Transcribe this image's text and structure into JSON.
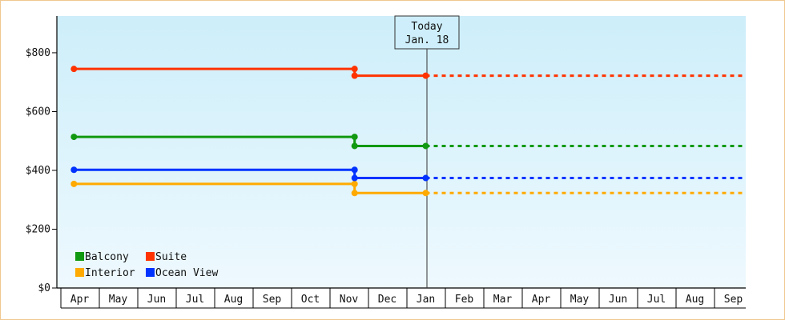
{
  "chart_data": {
    "type": "line",
    "x_categories": [
      "Apr",
      "May",
      "Jun",
      "Jul",
      "Aug",
      "Sep",
      "Oct",
      "Nov",
      "Dec",
      "Jan",
      "Feb",
      "Mar",
      "Apr",
      "May",
      "Jun",
      "Jul",
      "Aug",
      "Sep"
    ],
    "y_ticks": [
      "$0",
      "$200",
      "$400",
      "$600",
      "$800"
    ],
    "ylim": [
      0,
      925
    ],
    "grid": false,
    "legend_position": "bottom-left",
    "today_marker": {
      "line1": "Today",
      "line2": "Jan. 18",
      "x_index": 9
    },
    "series": [
      {
        "name": "Balcony",
        "color": "#119911",
        "points": [
          {
            "x": -0.15,
            "y": 514
          },
          {
            "x": 7.15,
            "y": 514
          },
          {
            "x": 7.15,
            "y": 483
          },
          {
            "x": 9,
            "y": 483
          }
        ],
        "projection": [
          {
            "x": 9,
            "y": 483
          },
          {
            "x": 17.9,
            "y": 483
          }
        ]
      },
      {
        "name": "Suite",
        "color": "#ff3300",
        "points": [
          {
            "x": -0.15,
            "y": 745
          },
          {
            "x": 7.15,
            "y": 745
          },
          {
            "x": 7.15,
            "y": 722
          },
          {
            "x": 9,
            "y": 722
          }
        ],
        "projection": [
          {
            "x": 9,
            "y": 722
          },
          {
            "x": 17.9,
            "y": 722
          }
        ]
      },
      {
        "name": "Interior",
        "color": "#ffaa00",
        "points": [
          {
            "x": -0.15,
            "y": 354
          },
          {
            "x": 7.15,
            "y": 354
          },
          {
            "x": 7.15,
            "y": 323
          },
          {
            "x": 9,
            "y": 323
          }
        ],
        "projection": [
          {
            "x": 9,
            "y": 323
          },
          {
            "x": 17.9,
            "y": 323
          }
        ]
      },
      {
        "name": "Ocean View",
        "color": "#0033ff",
        "points": [
          {
            "x": -0.15,
            "y": 402
          },
          {
            "x": 7.15,
            "y": 402
          },
          {
            "x": 7.15,
            "y": 374
          },
          {
            "x": 9,
            "y": 374
          }
        ],
        "projection": [
          {
            "x": 9,
            "y": 374
          },
          {
            "x": 17.9,
            "y": 374
          }
        ]
      }
    ]
  }
}
